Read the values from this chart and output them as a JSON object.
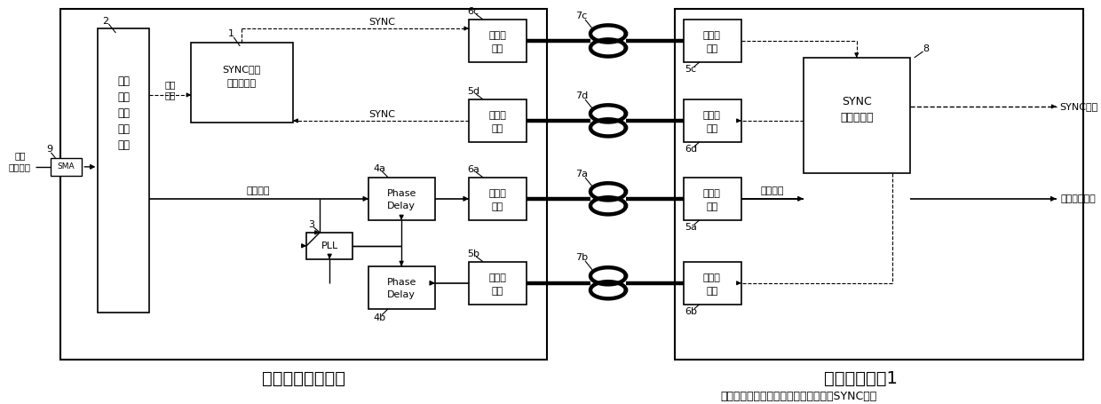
{
  "note": "注：细实线代表时钟路径；细虚线代表SYNC路径",
  "local_label": "本地数据处理中心",
  "remote_label": "远端测量节点1",
  "bg_color": "#ffffff"
}
